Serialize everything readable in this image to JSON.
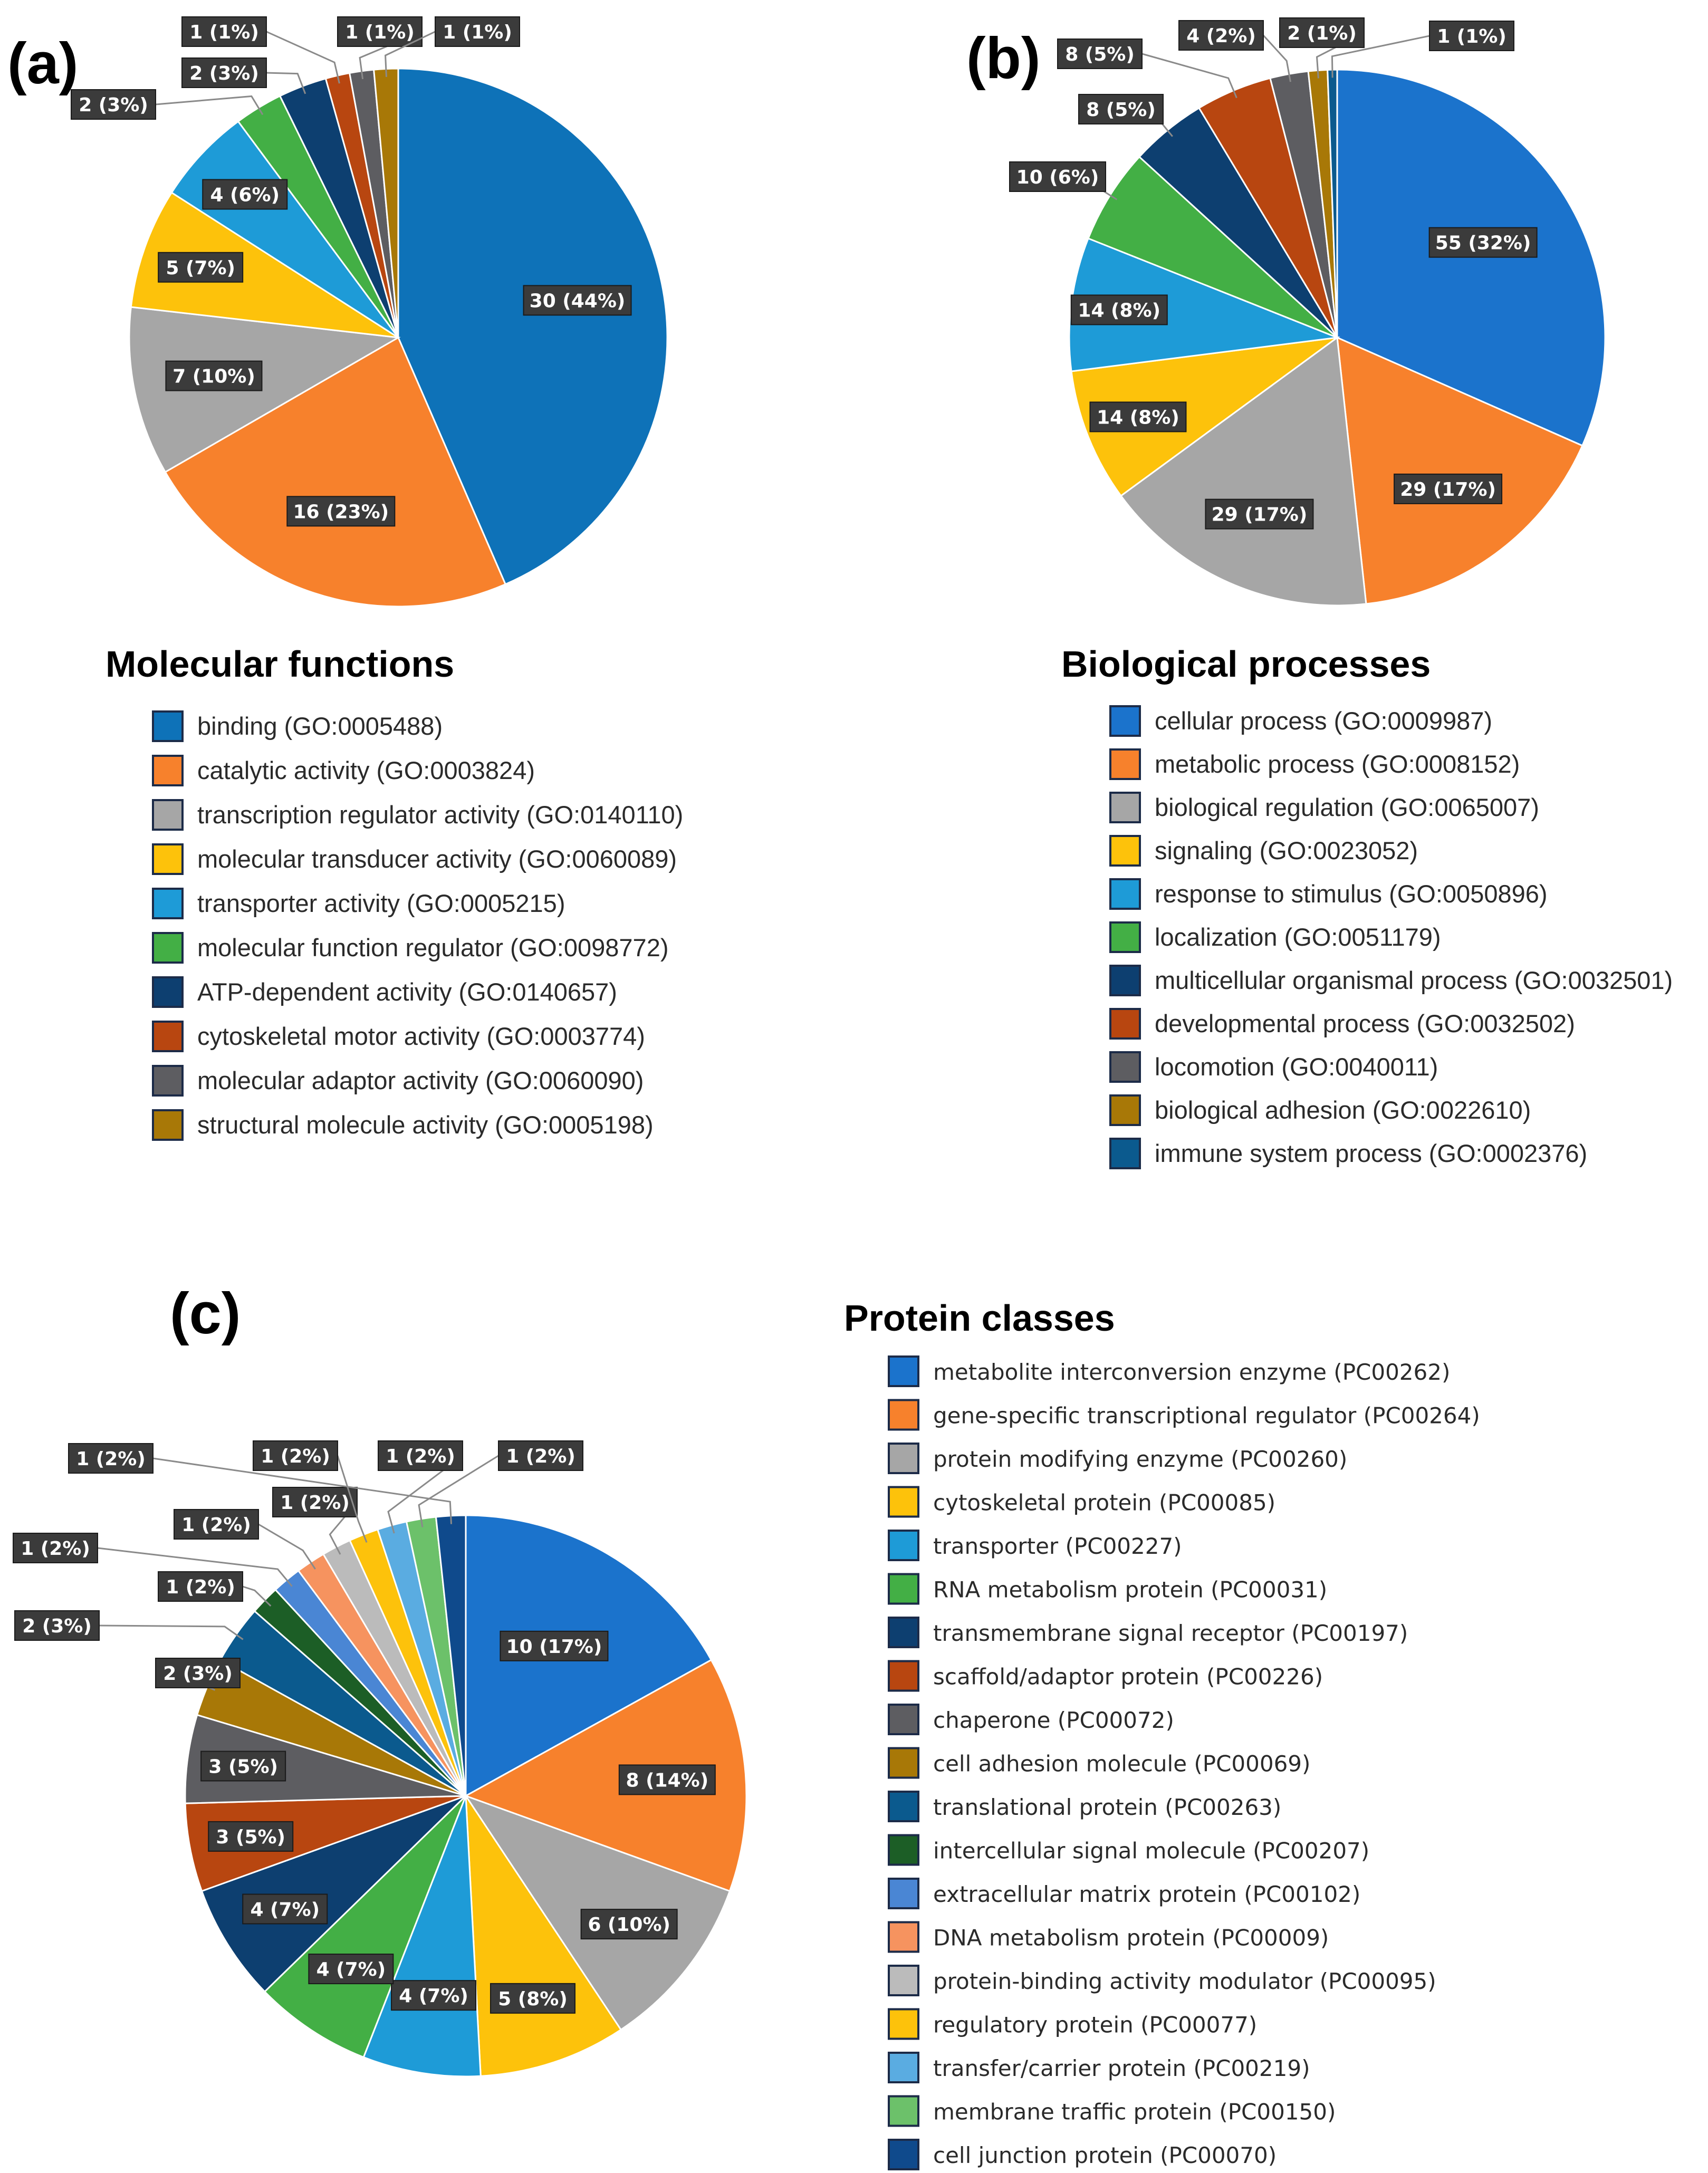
{
  "colors": {
    "blue": "#0E72B8",
    "blue_b": "#1B73CC",
    "orange": "#F7812C",
    "gray": "#A6A6A6",
    "yellow": "#FDC20B",
    "skyblue": "#1E9BD7",
    "green": "#43AF45",
    "navy": "#0D3F70",
    "rust": "#B84610",
    "darkgray": "#5D5D61",
    "gold": "#A87807",
    "teal": "#0B5A8E",
    "darkgreen": "#1C5E26",
    "periwinkle": "#4A86D4",
    "salmon": "#F6935F",
    "silver": "#BBBBBB",
    "lightblue": "#5AACE1",
    "lightgreen": "#6CC16A",
    "deepblue": "#0F4A8C"
  },
  "chart_data": [
    {
      "type": "pie",
      "panel": "(a)",
      "title": "Molecular functions",
      "categories": [
        "binding (GO:0005488)",
        "catalytic activity (GO:0003824)",
        "transcription regulator activity (GO:0140110)",
        "molecular transducer activity (GO:0060089)",
        "transporter activity (GO:0005215)",
        "molecular function regulator (GO:0098772)",
        "ATP-dependent activity (GO:0140657)",
        "cytoskeletal motor activity (GO:0003774)",
        "molecular adaptor activity (GO:0060090)",
        "structural molecule activity (GO:0005198)"
      ],
      "values": [
        30,
        16,
        7,
        5,
        4,
        2,
        2,
        1,
        1,
        1
      ],
      "labels": [
        "30 (44%)",
        "16 (23%)",
        "7 (10%)",
        "5 (7%)",
        "4 (6%)",
        "2 (3%)",
        "2 (3%)",
        "1 (1%)",
        "1 (1%)",
        "1 (1%)"
      ],
      "colors": [
        "#0E72B8",
        "#F7812C",
        "#A6A6A6",
        "#FDC20B",
        "#1E9BD7",
        "#43AF45",
        "#0D3F70",
        "#B84610",
        "#5D5D61",
        "#A87807"
      ]
    },
    {
      "type": "pie",
      "panel": "(b)",
      "title": "Biological processes",
      "categories": [
        "cellular process (GO:0009987)",
        "metabolic process (GO:0008152)",
        "biological regulation (GO:0065007)",
        "signaling (GO:0023052)",
        "response to stimulus (GO:0050896)",
        "localization (GO:0051179)",
        "multicellular organismal process (GO:0032501)",
        "developmental process (GO:0032502)",
        "locomotion (GO:0040011)",
        "biological adhesion (GO:0022610)",
        "immune system process (GO:0002376)"
      ],
      "values": [
        55,
        29,
        29,
        14,
        14,
        10,
        8,
        8,
        4,
        2,
        1
      ],
      "labels": [
        "55 (32%)",
        "29 (17%)",
        "29 (17%)",
        "14 (8%)",
        "14 (8%)",
        "10 (6%)",
        "8 (5%)",
        "8 (5%)",
        "4 (2%)",
        "2 (1%)",
        "1 (1%)"
      ],
      "colors": [
        "#1B73CC",
        "#F7812C",
        "#A6A6A6",
        "#FDC20B",
        "#1E9BD7",
        "#43AF45",
        "#0D3F70",
        "#B84610",
        "#5D5D61",
        "#A87807",
        "#0B5A8E"
      ]
    },
    {
      "type": "pie",
      "panel": "(c)",
      "title": "Protein classes",
      "categories": [
        "metabolite interconversion enzyme (PC00262)",
        "gene-specific transcriptional regulator (PC00264)",
        "protein modifying enzyme (PC00260)",
        "cytoskeletal protein (PC00085)",
        "transporter (PC00227)",
        "RNA metabolism protein (PC00031)",
        "transmembrane signal receptor (PC00197)",
        "scaffold/adaptor protein (PC00226)",
        "chaperone (PC00072)",
        "cell adhesion molecule (PC00069)",
        "translational protein (PC00263)",
        "intercellular signal molecule (PC00207)",
        "extracellular matrix protein (PC00102)",
        "DNA metabolism protein (PC00009)",
        "protein-binding activity modulator (PC00095)",
        "regulatory protein (PC00077)",
        "transfer/carrier protein (PC00219)",
        "membrane traffic protein (PC00150)",
        "cell junction protein (PC00070)"
      ],
      "values": [
        10,
        8,
        6,
        5,
        4,
        4,
        4,
        3,
        3,
        2,
        2,
        1,
        1,
        1,
        1,
        1,
        1,
        1,
        1
      ],
      "labels": [
        "10 (17%)",
        "8 (14%)",
        "6 (10%)",
        "5 (8%)",
        "4 (7%)",
        "4 (7%)",
        "4 (7%)",
        "3 (5%)",
        "3 (5%)",
        "2 (3%)",
        "2 (3%)",
        "1 (2%)",
        "1 (2%)",
        "1 (2%)",
        "1 (2%)",
        "1 (2%)",
        "1 (2%)",
        "1 (2%)",
        "1 (2%)"
      ],
      "colors": [
        "#1B73CC",
        "#F7812C",
        "#A6A6A6",
        "#FDC20B",
        "#1E9BD7",
        "#43AF45",
        "#0D3F70",
        "#B84610",
        "#5D5D61",
        "#A87807",
        "#0B5A8E",
        "#1C5E26",
        "#4A86D4",
        "#F6935F",
        "#BBBBBB",
        "#FDC20B",
        "#5AACE1",
        "#6CC16A",
        "#0F4A8C"
      ]
    }
  ]
}
